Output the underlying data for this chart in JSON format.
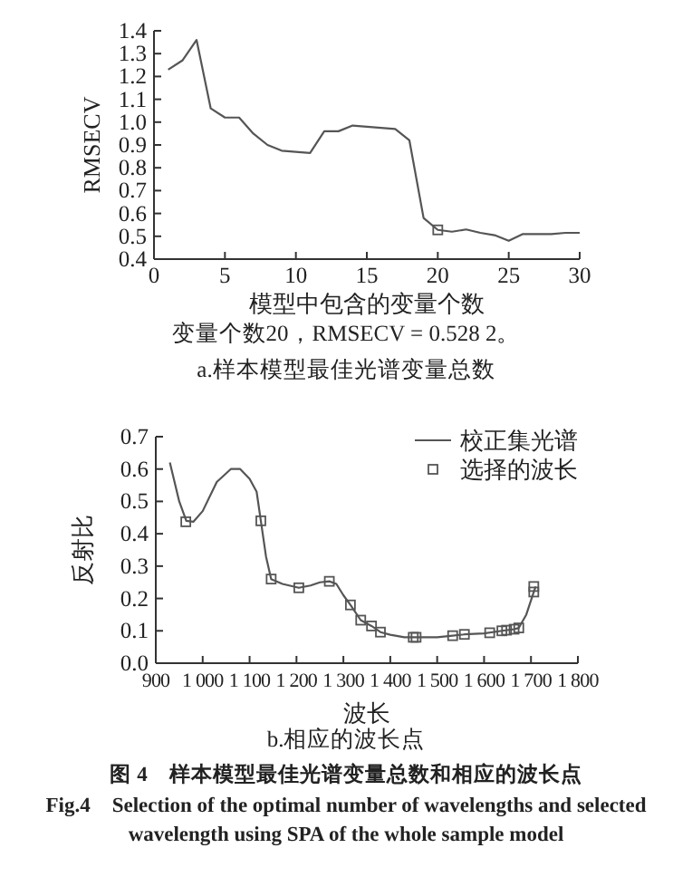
{
  "chart_data": [
    {
      "type": "line",
      "xlabel": "模型中包含的变量个数",
      "ylabel": "RMSECV",
      "xlim": [
        0,
        30
      ],
      "ylim": [
        0.4,
        1.4
      ],
      "xticks": [
        0,
        5,
        10,
        15,
        20,
        25,
        30
      ],
      "yticks": [
        0.4,
        0.5,
        0.6,
        0.7,
        0.8,
        0.9,
        {
          "value": 1.0,
          "label": "1.0"
        },
        1.1,
        1.2,
        1.3,
        1.4
      ],
      "grid": false,
      "legend": false,
      "annotations": [
        "变量个数20，RMSECV = 0.528 2。",
        "a.样本模型最佳光谱变量总数"
      ],
      "series": [
        {
          "type": "line",
          "color": "#555555",
          "x": [
            1,
            2,
            3,
            4,
            5,
            6,
            7,
            8,
            9,
            10,
            11,
            12,
            13,
            14,
            15,
            16,
            17,
            18,
            19,
            20,
            21,
            22,
            23,
            24,
            25,
            26,
            27,
            28,
            29,
            30
          ],
          "values": [
            1.23,
            1.27,
            1.36,
            1.06,
            1.02,
            1.02,
            0.95,
            0.9,
            0.875,
            0.87,
            0.865,
            0.96,
            0.96,
            0.985,
            0.98,
            0.975,
            0.97,
            0.92,
            0.58,
            0.528,
            0.52,
            0.53,
            0.515,
            0.505,
            0.48,
            0.51,
            0.51,
            0.51,
            0.515,
            0.515
          ]
        },
        {
          "type": "scatter",
          "marker": "square",
          "color": "#555555",
          "x": [
            20
          ],
          "values": [
            0.528
          ]
        }
      ]
    },
    {
      "type": "line",
      "xlabel": "波长",
      "ylabel": "反射比",
      "xlim": [
        900,
        1800
      ],
      "ylim": [
        0,
        0.7
      ],
      "xticks": [
        900,
        {
          "value": 1000,
          "label": "1 000"
        },
        {
          "value": 1100,
          "label": "1 100"
        },
        {
          "value": 1200,
          "label": "1 200"
        },
        {
          "value": 1300,
          "label": "1 300"
        },
        {
          "value": 1400,
          "label": "1 400"
        },
        {
          "value": 1500,
          "label": "1 500"
        },
        {
          "value": 1600,
          "label": "1 600"
        },
        {
          "value": 1700,
          "label": "1 700"
        },
        {
          "value": 1800,
          "label": "1 800"
        }
      ],
      "yticks": [
        {
          "value": 0,
          "label": "0.0"
        },
        0.1,
        0.2,
        0.3,
        0.4,
        0.5,
        0.6,
        0.7
      ],
      "grid": false,
      "legend": "top right",
      "annotations": [
        "b.相应的波长点",
        "图 4　样本模型最佳光谱变量总数和相应的波长点",
        "Fig.4　Selection of the optimal number of wavelengths and selected wavelength using SPA of the whole sample model"
      ],
      "series": [
        {
          "type": "line",
          "name": "校正集光谱",
          "color": "#555555",
          "x": [
            930,
            950,
            965,
            980,
            1000,
            1030,
            1060,
            1080,
            1100,
            1115,
            1124,
            1135,
            1146,
            1170,
            1205,
            1230,
            1250,
            1270,
            1285,
            1300,
            1315,
            1337,
            1360,
            1379,
            1400,
            1430,
            1455,
            1500,
            1533,
            1558,
            1600,
            1638,
            1664,
            1674,
            1690,
            1706,
            1710
          ],
          "values": [
            0.62,
            0.5,
            0.44,
            0.437,
            0.47,
            0.56,
            0.6,
            0.6,
            0.57,
            0.53,
            0.44,
            0.33,
            0.26,
            0.245,
            0.233,
            0.24,
            0.25,
            0.253,
            0.245,
            0.21,
            0.18,
            0.133,
            0.115,
            0.096,
            0.088,
            0.08,
            0.08,
            0.08,
            0.085,
            0.089,
            0.092,
            0.1,
            0.105,
            0.109,
            0.15,
            0.22,
            0.237
          ]
        },
        {
          "type": "scatter",
          "name": "选择的波长",
          "marker": "square",
          "color": "#555555",
          "x": [
            964,
            1124,
            1146,
            1205,
            1270,
            1315,
            1337,
            1360,
            1379,
            1449,
            1455,
            1533,
            1558,
            1612,
            1638,
            1648,
            1664,
            1674,
            1706,
            1706
          ],
          "values": [
            0.437,
            0.44,
            0.26,
            0.233,
            0.253,
            0.18,
            0.133,
            0.115,
            0.096,
            0.08,
            0.08,
            0.085,
            0.089,
            0.094,
            0.1,
            0.102,
            0.105,
            0.109,
            0.22,
            0.237
          ]
        }
      ]
    }
  ]
}
